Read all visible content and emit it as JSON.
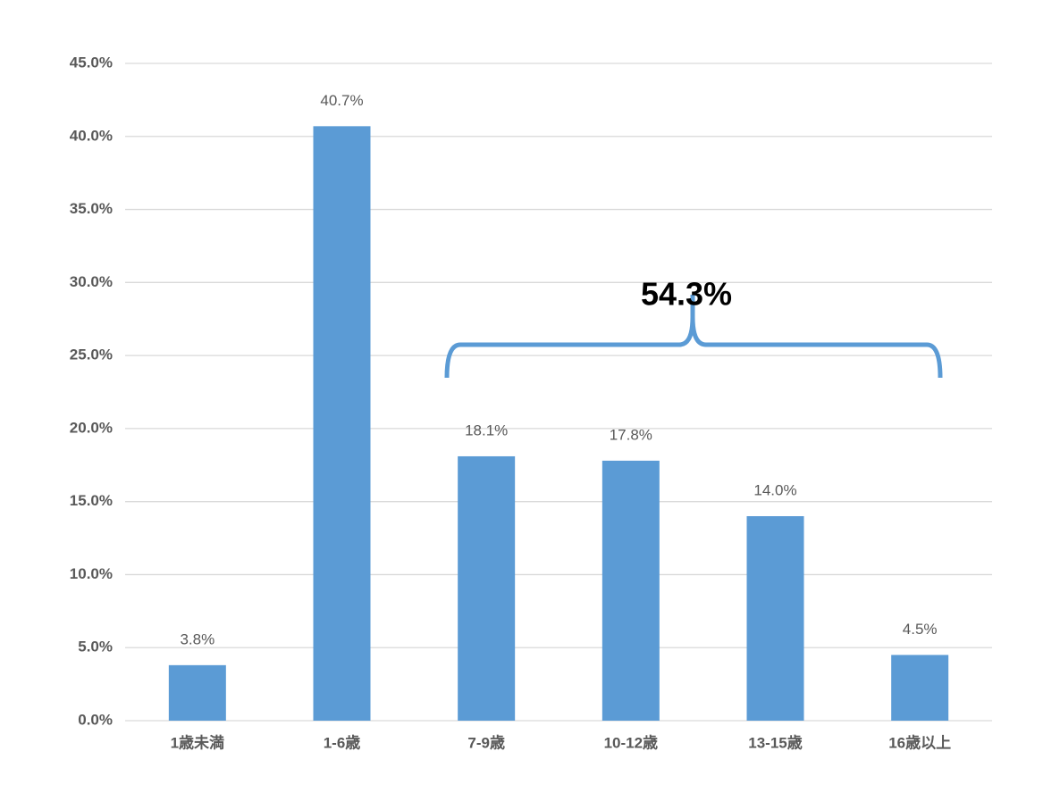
{
  "chart_data": {
    "type": "bar",
    "categories": [
      "1歳未満",
      "1-6歳",
      "7-9歳",
      "10-12歳",
      "13-15歳",
      "16歳以上"
    ],
    "values": [
      3.8,
      40.7,
      18.1,
      17.8,
      14.0,
      4.5
    ],
    "value_labels": [
      "3.8%",
      "40.7%",
      "18.1%",
      "17.8%",
      "14.0%",
      "4.5%"
    ],
    "color": "#5b9bd5",
    "ylim": [
      0,
      45
    ],
    "yticks": [
      {
        "value": 0,
        "label": "0.0%"
      },
      {
        "value": 5,
        "label": "5.0%"
      },
      {
        "value": 10,
        "label": "10.0%"
      },
      {
        "value": 15,
        "label": "15.0%"
      },
      {
        "value": 20,
        "label": "20.0%"
      },
      {
        "value": 25,
        "label": "25.0%"
      },
      {
        "value": 30,
        "label": "30.0%"
      },
      {
        "value": 35,
        "label": "35.0%"
      },
      {
        "value": 40,
        "label": "40.0%"
      },
      {
        "value": 45,
        "label": "45.0%"
      }
    ],
    "grid": true,
    "annotation": "54.3%"
  }
}
